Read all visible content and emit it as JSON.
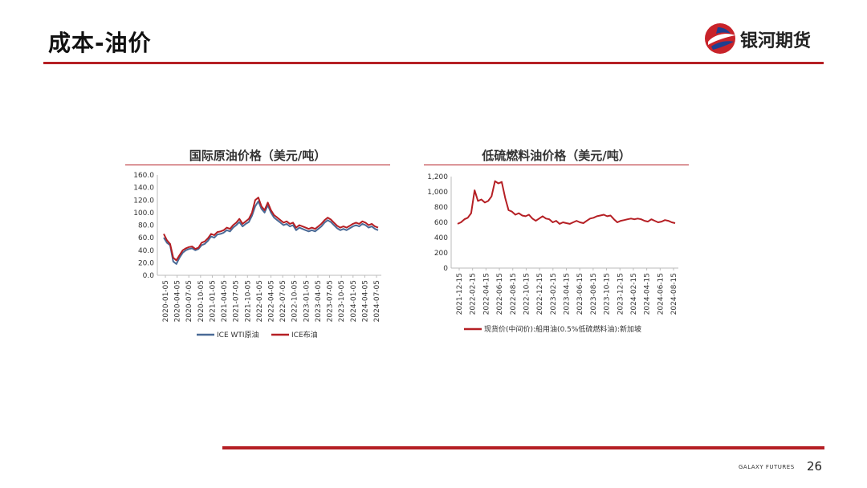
{
  "header": {
    "title": "成本-油价",
    "logo_text": "银河期货"
  },
  "footer": {
    "brand": "GALAXY FUTURES",
    "page_number": "26"
  },
  "colors": {
    "accent": "#b51f24",
    "wti": "#4a6a96",
    "brent": "#b51f24",
    "lsfo": "#b51f24"
  },
  "chart_data": [
    {
      "type": "line",
      "title": "国际原油价格（美元/吨）",
      "ylim": [
        0,
        160
      ],
      "yticks": [
        "0.0",
        "20.0",
        "40.0",
        "60.0",
        "80.0",
        "100.0",
        "120.0",
        "140.0",
        "160.0"
      ],
      "xticks": [
        "2020-01-05",
        "2020-04-05",
        "2020-07-05",
        "2020-10-05",
        "2021-01-05",
        "2021-04-05",
        "2021-07-05",
        "2021-10-05",
        "2022-01-05",
        "2022-04-05",
        "2022-07-05",
        "2022-10-05",
        "2023-01-05",
        "2023-04-05",
        "2023-07-05",
        "2023-10-05",
        "2024-01-05",
        "2024-04-05",
        "2024-07-05"
      ],
      "legend_position": "bottom",
      "series": [
        {
          "name": "ICE WTI原油",
          "values": [
            60,
            52,
            48,
            22,
            18,
            28,
            36,
            40,
            42,
            43,
            40,
            42,
            48,
            50,
            55,
            62,
            60,
            65,
            66,
            68,
            72,
            70,
            76,
            80,
            85,
            78,
            82,
            85,
            95,
            110,
            118,
            106,
            100,
            112,
            100,
            92,
            88,
            84,
            80,
            82,
            78,
            80,
            72,
            76,
            74,
            72,
            70,
            72,
            70,
            74,
            78,
            84,
            88,
            85,
            80,
            75,
            72,
            74,
            72,
            75,
            78,
            80,
            78,
            82,
            80,
            76,
            78,
            74,
            72
          ]
        },
        {
          "name": "ICE布油",
          "values": [
            66,
            56,
            50,
            28,
            24,
            32,
            40,
            43,
            45,
            46,
            42,
            44,
            52,
            54,
            59,
            66,
            64,
            69,
            70,
            72,
            76,
            74,
            80,
            84,
            90,
            82,
            86,
            90,
            100,
            120,
            124,
            110,
            104,
            116,
            104,
            96,
            92,
            88,
            84,
            86,
            82,
            84,
            76,
            80,
            78,
            76,
            74,
            76,
            74,
            78,
            82,
            88,
            92,
            89,
            84,
            79,
            76,
            78,
            76,
            79,
            82,
            84,
            82,
            86,
            84,
            80,
            82,
            78,
            76
          ]
        }
      ]
    },
    {
      "type": "line",
      "title": "低硫燃料油价格（美元/吨）",
      "ylim": [
        0,
        1200
      ],
      "yticks": [
        "0",
        "200",
        "400",
        "600",
        "800",
        "1,000",
        "1,200"
      ],
      "xticks": [
        "2021-12-15",
        "2022-02-15",
        "2022-04-15",
        "2022-06-15",
        "2022-08-15",
        "2022-10-15",
        "2022-12-15",
        "2023-02-15",
        "2023-04-15",
        "2023-06-15",
        "2023-08-15",
        "2023-10-15",
        "2023-12-15",
        "2024-02-15",
        "2024-04-15",
        "2024-06-15",
        "2024-08-15"
      ],
      "legend_position": "bottom",
      "series": [
        {
          "name": "现货价(中间价):船用油(0.5%低硫燃料油):新加坡",
          "values": [
            580,
            600,
            640,
            660,
            720,
            1020,
            880,
            900,
            860,
            880,
            940,
            1140,
            1110,
            1130,
            920,
            760,
            740,
            700,
            720,
            690,
            680,
            700,
            650,
            620,
            650,
            680,
            650,
            640,
            600,
            620,
            580,
            600,
            590,
            580,
            600,
            620,
            600,
            590,
            620,
            650,
            660,
            680,
            690,
            700,
            680,
            690,
            640,
            600,
            620,
            630,
            640,
            650,
            640,
            650,
            640,
            620,
            610,
            640,
            620,
            600,
            610,
            630,
            620,
            600,
            590
          ]
        }
      ]
    }
  ]
}
